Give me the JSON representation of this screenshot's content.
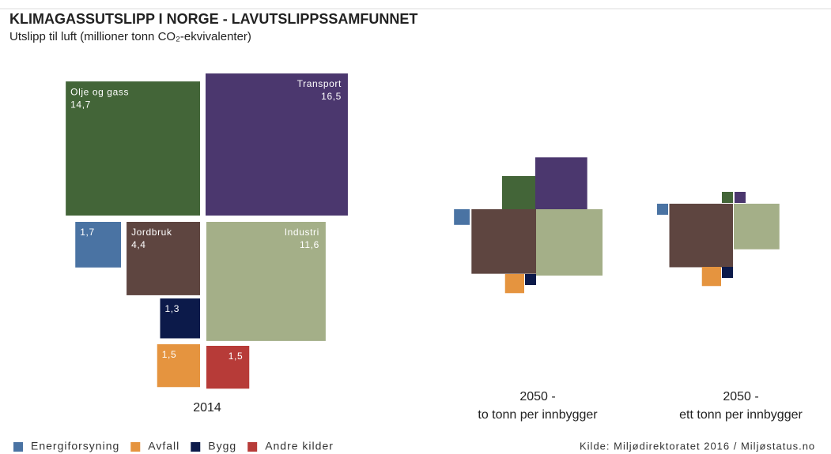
{
  "chart_data": {
    "type": "proportional-squares",
    "title": "KLIMAGASSUTSLIPP I NORGE - LAVUTSLIPPSSAMFUNNET",
    "subtitle": "Utslipp til luft (millioner tonn CO₂-ekvivalenter)",
    "source": "Kilde: Miljødirektoratet 2016 / Miljøstatus.no",
    "categories": [
      "Energiforsyning",
      "Olje og gass",
      "Transport",
      "Jordbruk",
      "Industri",
      "Avfall",
      "Bygg",
      "Andre kilder"
    ],
    "colors": [
      "#4a73a3",
      "#436538",
      "#4b376e",
      "#5e4540",
      "#a4af88",
      "#e5943f",
      "#0c1a4a",
      "#b73b38"
    ],
    "panels": [
      {
        "label": [
          "2014"
        ],
        "values": [
          1.7,
          14.7,
          16.5,
          4.4,
          11.6,
          1.5,
          1.3,
          1.5
        ],
        "value_labels": [
          "1,7",
          "14,7",
          "16,5",
          "4,4",
          "11,6",
          "1,5",
          "1,3",
          "1,5"
        ]
      },
      {
        "label": [
          "2050 -",
          "to tonn per innbygger"
        ],
        "values": [
          0.2,
          0.9,
          2.2,
          3.4,
          3.6,
          0.3,
          0.1,
          null
        ]
      },
      {
        "label": [
          "2050 -",
          "ett tonn per innbygger"
        ],
        "values": [
          0.1,
          0.1,
          0.1,
          3.3,
          1.7,
          0.3,
          0.1,
          null
        ]
      }
    ]
  }
}
